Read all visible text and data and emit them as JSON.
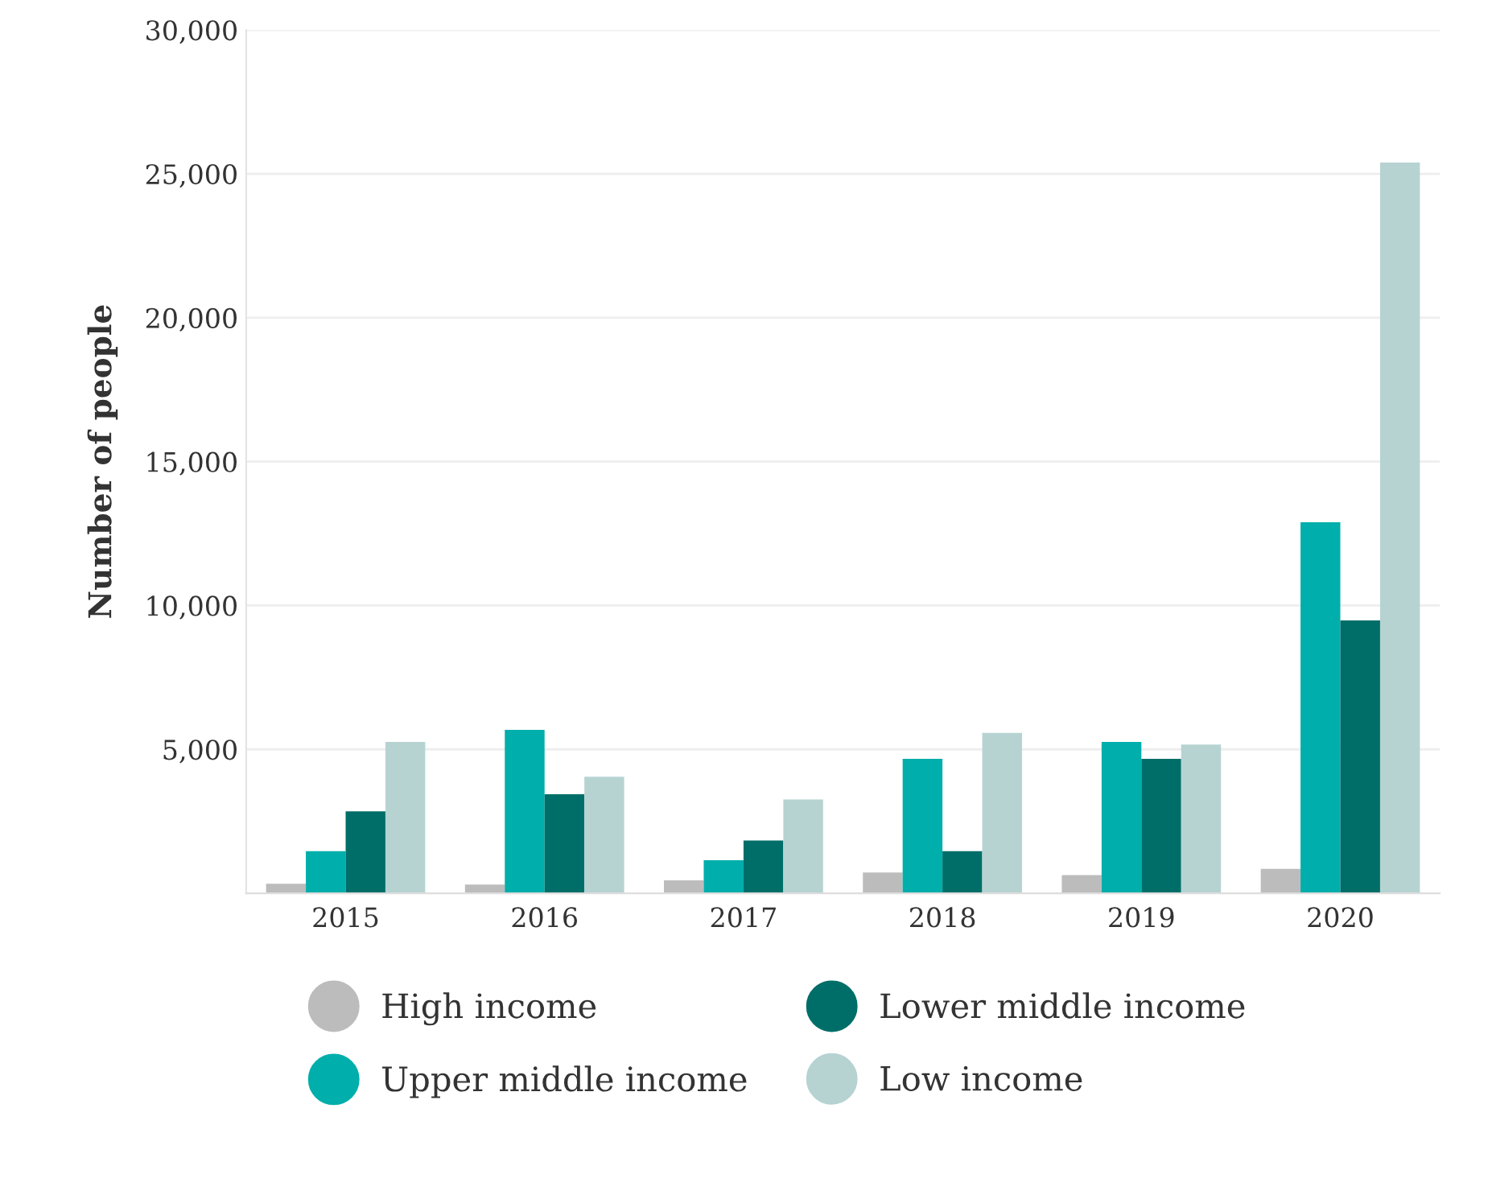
{
  "chart_data": {
    "type": "bar",
    "ylabel": "Number of people",
    "categories": [
      "2015",
      "2016",
      "2017",
      "2018",
      "2019",
      "2020"
    ],
    "series": [
      {
        "name": "High income",
        "color": "#bcbcbc",
        "values": [
          330,
          300,
          450,
          720,
          630,
          850
        ]
      },
      {
        "name": "Upper middle income",
        "color": "#00aeab",
        "values": [
          1460,
          5680,
          1150,
          4670,
          5260,
          12890
        ]
      },
      {
        "name": "Lower middle income",
        "color": "#006e68",
        "values": [
          2850,
          3440,
          1830,
          1460,
          4670,
          9480
        ]
      },
      {
        "name": "Low income",
        "color": "#b6d3d2",
        "values": [
          5260,
          4050,
          3260,
          5570,
          5170,
          25390
        ]
      }
    ],
    "ylim": [
      0,
      30000
    ],
    "yticks": [
      {
        "value": 5000,
        "label": "5,000"
      },
      {
        "value": 10000,
        "label": "10,000"
      },
      {
        "value": 15000,
        "label": "15,000"
      },
      {
        "value": 20000,
        "label": "20,000"
      },
      {
        "value": 25000,
        "label": "25,000"
      },
      {
        "value": 30000,
        "label": "30,000"
      }
    ],
    "grid": "y",
    "legend": "bottom"
  }
}
